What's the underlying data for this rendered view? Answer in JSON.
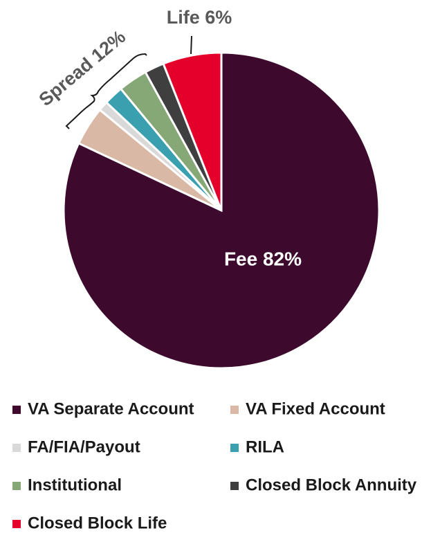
{
  "chart_data": {
    "type": "pie",
    "series": [
      {
        "name": "VA Separate Account",
        "color": "#3d0a2e",
        "values": [
          82
        ]
      },
      {
        "name": "VA Fixed Account",
        "color": "#d9b8a6",
        "values": [
          4
        ]
      },
      {
        "name": "FA/FIA/Payout",
        "color": "#d9d9d9",
        "values": [
          1
        ]
      },
      {
        "name": "RILA",
        "color": "#3a9fae",
        "values": [
          2
        ]
      },
      {
        "name": "Institutional",
        "color": "#86a876",
        "values": [
          3
        ]
      },
      {
        "name": "Closed Block Annuity",
        "color": "#3f3f3f",
        "values": [
          2
        ]
      },
      {
        "name": "Closed Block Life",
        "color": "#e4002b",
        "values": [
          6
        ]
      }
    ],
    "annotations": [
      "Fee 82%",
      "Spread 12%",
      "Life 6%"
    ]
  }
}
